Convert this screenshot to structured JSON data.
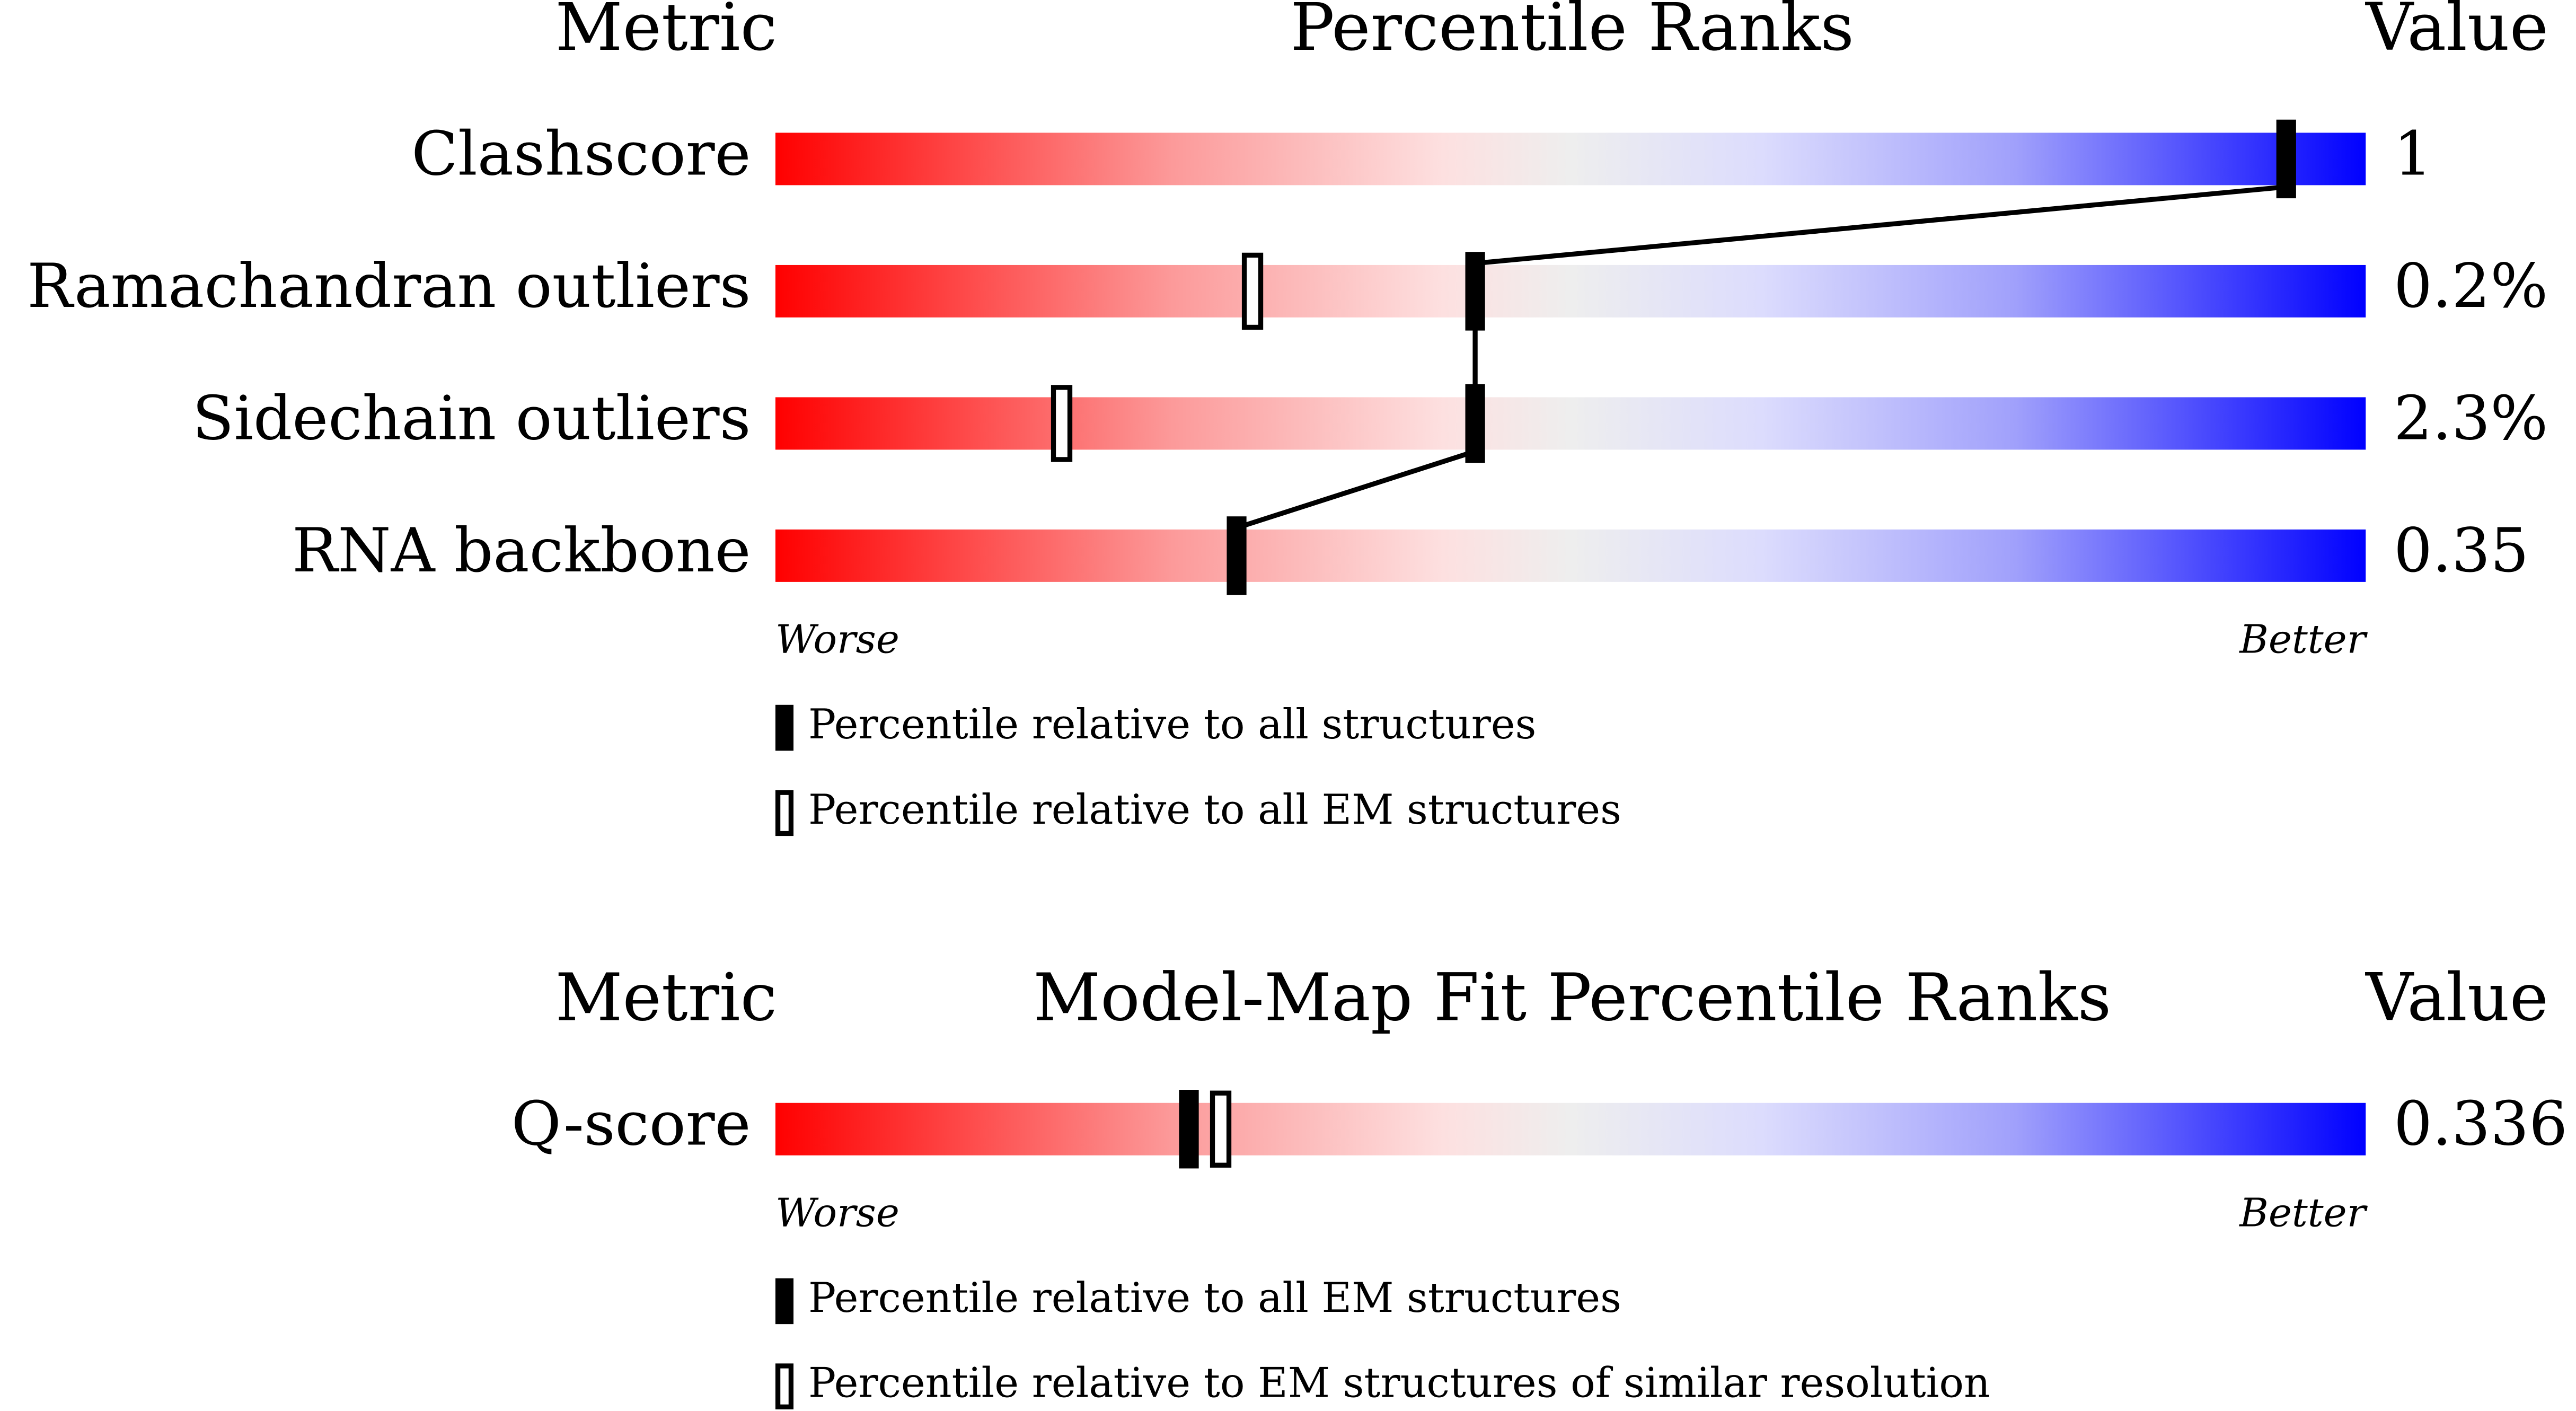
{
  "panels": [
    {
      "header": {
        "metric": "Metric",
        "title": "Percentile Ranks",
        "value": "Value"
      },
      "xlim": [
        0,
        100
      ],
      "connect": true,
      "rows": [
        {
          "metric": "Clashscore",
          "value": "1",
          "percentile_filled": 95
        },
        {
          "metric": "Ramachandran outliers",
          "value": "0.2%",
          "percentile_filled": 44,
          "percentile_open": 30
        },
        {
          "metric": "Sidechain outliers",
          "value": "2.3%",
          "percentile_filled": 44,
          "percentile_open": 18
        },
        {
          "metric": "RNA backbone",
          "value": "0.35",
          "percentile_filled": 29
        }
      ],
      "scale": {
        "worse": "Worse",
        "better": "Better"
      },
      "legend": {
        "filled": "Percentile relative to all structures",
        "open": "Percentile relative to all EM structures"
      }
    },
    {
      "header": {
        "metric": "Metric",
        "title": "Model-Map Fit Percentile Ranks",
        "value": "Value"
      },
      "xlim": [
        0,
        100
      ],
      "connect": false,
      "rows": [
        {
          "metric": "Q-score",
          "value": "0.336",
          "percentile_filled": 26,
          "percentile_open": 28
        }
      ],
      "scale": {
        "worse": "Worse",
        "better": "Better"
      },
      "legend": {
        "filled": "Percentile relative to all EM structures",
        "open": "Percentile relative to EM structures of similar resolution"
      }
    }
  ]
}
